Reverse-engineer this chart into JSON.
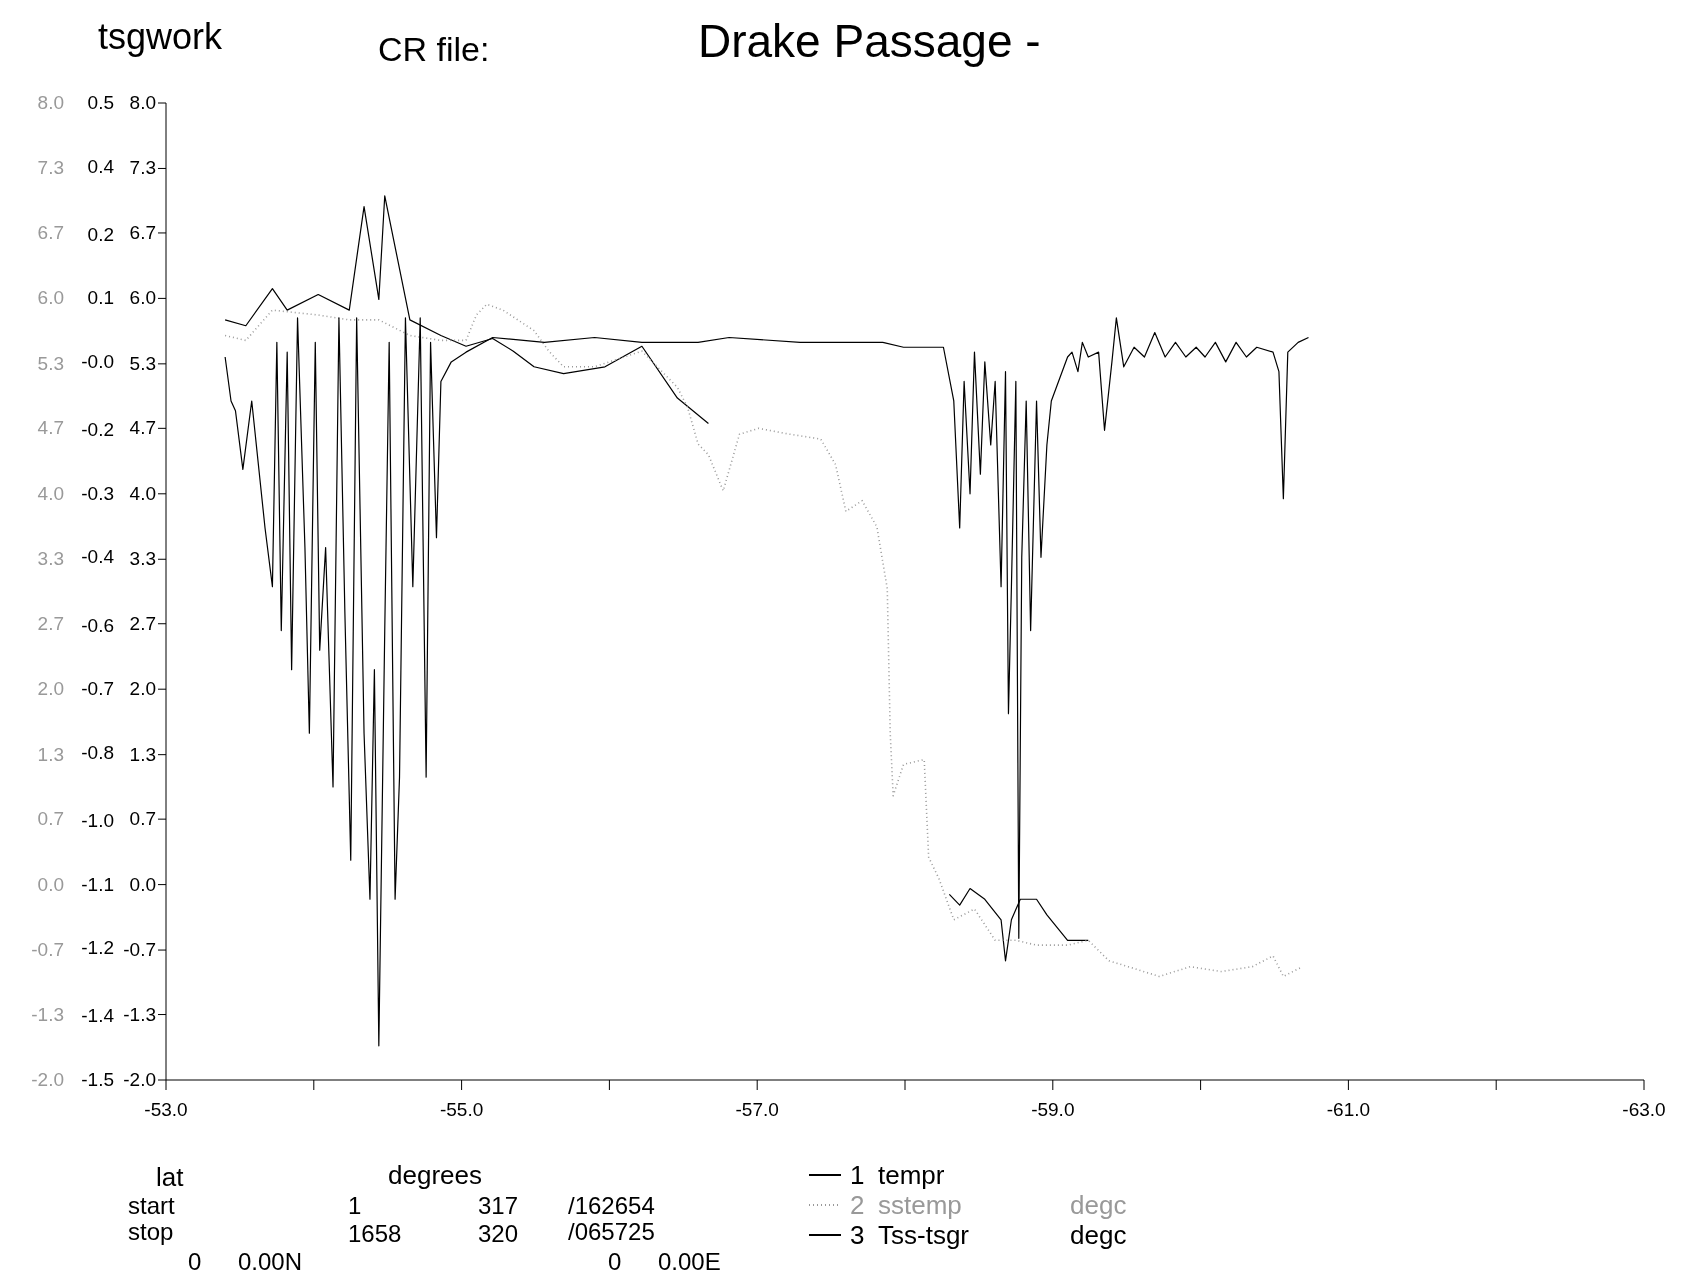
{
  "chart_data": {
    "type": "line",
    "title": "Drake Passage -",
    "xlabel": "lat",
    "annotations": [
      "tsgwork",
      "CR file:",
      "degrees",
      "start",
      "1",
      "317",
      "/162654",
      "stop",
      "1658",
      "320",
      "/065725",
      "0",
      "0.00N",
      "0",
      "0.00E",
      "degc",
      "degc",
      "2",
      "3"
    ],
    "xlim": [
      -53,
      -63
    ],
    "xticks": [
      {
        "value": -53,
        "label": "-53.0"
      },
      {
        "value": -54,
        "label": null
      },
      {
        "value": -55,
        "label": "-55.0"
      },
      {
        "value": -56,
        "label": null
      },
      {
        "value": -57,
        "label": "-57.0"
      },
      {
        "value": -58,
        "label": null
      },
      {
        "value": -59,
        "label": "-59.0"
      },
      {
        "value": -60,
        "label": null
      },
      {
        "value": -61,
        "label": "-61.0"
      },
      {
        "value": -62,
        "label": null
      },
      {
        "value": -63,
        "label": "-63.0"
      }
    ],
    "ylim": [
      -2,
      8
    ],
    "yticks": [
      {
        "value": 8,
        "label": "8.0"
      },
      {
        "value": 7.33,
        "label": "7.3"
      },
      {
        "value": 6.67,
        "label": "6.7"
      },
      {
        "value": 6,
        "label": "6.0"
      },
      {
        "value": 5.33,
        "label": "5.3"
      },
      {
        "value": 4.67,
        "label": "4.7"
      },
      {
        "value": 4,
        "label": "4.0"
      },
      {
        "value": 3.33,
        "label": "3.3"
      },
      {
        "value": 2.67,
        "label": "2.7"
      },
      {
        "value": 2,
        "label": "2.0"
      },
      {
        "value": 1.33,
        "label": "1.3"
      },
      {
        "value": 0.67,
        "label": "0.7"
      },
      {
        "value": 0,
        "label": "0.0"
      },
      {
        "value": -0.67,
        "label": "-0.7"
      },
      {
        "value": -1.33,
        "label": "-1.3"
      },
      {
        "value": -2,
        "label": "-2.0"
      }
    ],
    "y2lim": [
      -1.5,
      0.5
    ],
    "y2ticks": [
      {
        "value": 0.5,
        "label": "0.5"
      },
      {
        "value": 0.37,
        "label": "0.4"
      },
      {
        "value": 0.23,
        "label": "0.2"
      },
      {
        "value": 0.1,
        "label": "0.1"
      },
      {
        "value": -0.03,
        "label": "-0.0"
      },
      {
        "value": -0.17,
        "label": "-0.2"
      },
      {
        "value": -0.3,
        "label": "-0.3"
      },
      {
        "value": -0.43,
        "label": "-0.4"
      },
      {
        "value": -0.57,
        "label": "-0.6"
      },
      {
        "value": -0.7,
        "label": "-0.7"
      },
      {
        "value": -0.83,
        "label": "-0.8"
      },
      {
        "value": -0.97,
        "label": "-1.0"
      },
      {
        "value": -1.1,
        "label": "-1.1"
      },
      {
        "value": -1.23,
        "label": "-1.2"
      },
      {
        "value": -1.37,
        "label": "-1.4"
      },
      {
        "value": -1.5,
        "label": "-1.5"
      }
    ],
    "y3lim": [
      -2,
      8
    ],
    "y3ticks": [
      {
        "value": 8,
        "label": "8.0"
      },
      {
        "value": 7.33,
        "label": "7.3"
      },
      {
        "value": 6.67,
        "label": "6.7"
      },
      {
        "value": 6,
        "label": "6.0"
      },
      {
        "value": 5.33,
        "label": "5.3"
      },
      {
        "value": 4.67,
        "label": "4.7"
      },
      {
        "value": 4,
        "label": "4.0"
      },
      {
        "value": 3.33,
        "label": "3.3"
      },
      {
        "value": 2.67,
        "label": "2.7"
      },
      {
        "value": 2,
        "label": "2.0"
      },
      {
        "value": 1.33,
        "label": "1.3"
      },
      {
        "value": 0.67,
        "label": "0.7"
      },
      {
        "value": 0,
        "label": "0.0"
      },
      {
        "value": -0.67,
        "label": "-0.7"
      },
      {
        "value": -1.33,
        "label": "-1.3"
      },
      {
        "value": -2,
        "label": "-2.0"
      }
    ],
    "legend": "bottom right",
    "marker": "none",
    "series": [
      {
        "name": "tempr",
        "color": "#000000",
        "line_style": "solid",
        "x": [
          -53.4,
          -53.54,
          -53.72,
          -53.82,
          -54.03,
          -54.24,
          -54.34,
          -54.44,
          -54.48,
          -54.65,
          -54.86,
          -55.03,
          -55.21,
          -55.35,
          -55.49,
          -55.69,
          -55.97,
          -56.22,
          -56.46,
          -56.67,
          -57.5,
          -58.3,
          -58.37,
          -58.44,
          -58.54,
          -58.65,
          -58.68,
          -58.72,
          -58.78,
          -58.89,
          -58.96,
          -59.1,
          -59.24
        ],
        "values": [
          5.78,
          5.72,
          6.1,
          5.88,
          6.04,
          5.88,
          6.94,
          5.99,
          7.05,
          5.78,
          5.62,
          5.51,
          5.59,
          5.46,
          5.3,
          5.23,
          5.3,
          5.51,
          4.98,
          4.72,
          null,
          -0.1,
          -0.21,
          -0.04,
          -0.15,
          -0.36,
          -0.78,
          -0.36,
          -0.15,
          -0.15,
          -0.31,
          -0.57,
          -0.57
        ]
      },
      {
        "name": "sstemp",
        "color": "#999999",
        "line_style": "dotted",
        "axis": "y3",
        "x": [
          -53.4,
          -53.54,
          -53.72,
          -54.03,
          -54.24,
          -54.44,
          -54.65,
          -54.86,
          -55.03,
          -55.1,
          -55.17,
          -55.28,
          -55.38,
          -55.49,
          -55.59,
          -55.69,
          -55.9,
          -56.22,
          -56.46,
          -56.53,
          -56.6,
          -56.67,
          -56.77,
          -56.88,
          -57.01,
          -57.22,
          -57.43,
          -57.53,
          -57.6,
          -57.71,
          -57.81,
          -57.88,
          -57.9,
          -57.92,
          -57.99,
          -58.13,
          -58.16,
          -58.23,
          -58.33,
          -58.47,
          -58.61,
          -58.75,
          -58.89,
          -59.1,
          -59.24,
          -59.38,
          -59.51,
          -59.72,
          -59.93,
          -60.14,
          -60.35,
          -60.49,
          -60.56,
          -60.69
        ],
        "values": [
          5.62,
          5.57,
          5.88,
          5.83,
          5.78,
          5.78,
          5.62,
          5.57,
          5.57,
          5.83,
          5.94,
          5.88,
          5.78,
          5.67,
          5.46,
          5.3,
          5.3,
          5.46,
          5.09,
          4.88,
          4.51,
          4.4,
          4.03,
          4.61,
          4.67,
          4.61,
          4.56,
          4.3,
          3.82,
          3.93,
          3.66,
          3.03,
          1.55,
          0.91,
          1.23,
          1.28,
          0.28,
          0.06,
          -0.36,
          -0.25,
          -0.57,
          -0.57,
          -0.62,
          -0.62,
          -0.57,
          -0.78,
          -0.84,
          -0.94,
          -0.84,
          -0.89,
          -0.84,
          -0.73,
          -0.94,
          -0.84
        ]
      },
      {
        "name": "Tss-tsgr",
        "color": "#000000",
        "line_style": "solid",
        "axis": "y2",
        "x": [
          -53.4,
          -53.44,
          -53.47,
          -53.52,
          -53.58,
          -53.67,
          -53.72,
          -53.75,
          -53.78,
          -53.82,
          -53.85,
          -53.89,
          -53.94,
          -53.97,
          -54.01,
          -54.04,
          -54.08,
          -54.13,
          -54.17,
          -54.21,
          -54.25,
          -54.29,
          -54.34,
          -54.38,
          -54.41,
          -54.44,
          -54.48,
          -54.51,
          -54.55,
          -54.58,
          -54.62,
          -54.67,
          -54.72,
          -54.76,
          -54.79,
          -54.83,
          -54.86,
          -54.93,
          -55.03,
          -55.21,
          -55.56,
          -55.9,
          -56.22,
          -56.6,
          -56.81,
          -57.29,
          -57.85,
          -57.99,
          -58.26,
          -58.33,
          -58.37,
          -58.4,
          -58.44,
          -58.47,
          -58.51,
          -58.54,
          -58.58,
          -58.61,
          -58.65,
          -58.68,
          -58.7,
          -58.72,
          -58.75,
          -58.77,
          -58.79,
          -58.82,
          -58.85,
          -58.89,
          -58.92,
          -58.96,
          -58.99,
          -59.1,
          -59.13,
          -59.17,
          -59.2,
          -59.24,
          -59.31,
          -59.35,
          -59.4,
          -59.43,
          -59.48,
          -59.55,
          -59.62,
          -59.69,
          -59.76,
          -59.83,
          -59.9,
          -59.97,
          -60.03,
          -60.1,
          -60.17,
          -60.24,
          -60.31,
          -60.38,
          -60.49,
          -60.53,
          -60.56,
          -60.59,
          -60.66,
          -60.73
        ],
        "values": [
          -0.02,
          -0.11,
          -0.13,
          -0.25,
          -0.11,
          -0.37,
          -0.49,
          0.01,
          -0.58,
          -0.01,
          -0.66,
          0.06,
          -0.41,
          -0.79,
          0.01,
          -0.62,
          -0.41,
          -0.9,
          0.06,
          -0.54,
          -1.05,
          0.06,
          -0.79,
          -1.13,
          -0.66,
          -1.43,
          -0.58,
          0.01,
          -1.13,
          -0.88,
          0.06,
          -0.49,
          0.06,
          -0.88,
          0.01,
          -0.39,
          -0.07,
          -0.03,
          -0.01,
          0.02,
          0.01,
          0.02,
          0.01,
          0.01,
          0.02,
          0.01,
          0.01,
          0,
          0,
          -0.11,
          -0.37,
          -0.07,
          -0.3,
          -0.01,
          -0.26,
          -0.03,
          -0.2,
          -0.07,
          -0.49,
          -0.05,
          -0.75,
          -0.49,
          -0.07,
          -1.21,
          -0.43,
          -0.11,
          -0.58,
          -0.11,
          -0.43,
          -0.2,
          -0.11,
          -0.02,
          -0.01,
          -0.05,
          0.01,
          -0.02,
          -0.01,
          -0.17,
          -0.03,
          0.06,
          -0.04,
          0,
          -0.02,
          0.03,
          -0.02,
          0.01,
          -0.02,
          0,
          -0.02,
          0.01,
          -0.03,
          0.01,
          -0.02,
          0,
          -0.01,
          -0.05,
          -0.31,
          -0.01,
          0.01,
          0.02
        ]
      }
    ]
  }
}
